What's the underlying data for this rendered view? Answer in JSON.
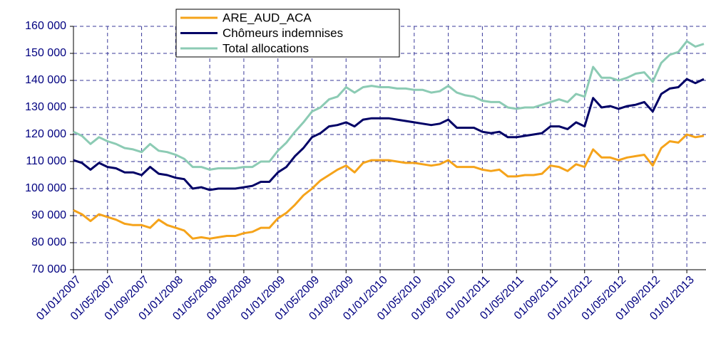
{
  "chart_data": {
    "type": "line",
    "categories": [
      "01/01/2007",
      null,
      null,
      null,
      "01/05/2007",
      null,
      null,
      null,
      "01/09/2007",
      null,
      null,
      null,
      "01/01/2008",
      null,
      null,
      null,
      "01/05/2008",
      null,
      null,
      null,
      "01/09/2008",
      null,
      null,
      null,
      "01/01/2009",
      null,
      null,
      null,
      "01/05/2009",
      null,
      null,
      null,
      "01/09/2009",
      null,
      null,
      null,
      "01/01/2010",
      null,
      null,
      null,
      "01/05/2010",
      null,
      null,
      null,
      "01/09/2010",
      null,
      null,
      null,
      "01/01/2011",
      null,
      null,
      null,
      "01/05/2011",
      null,
      null,
      null,
      "01/09/2011",
      null,
      null,
      null,
      "01/01/2012",
      null,
      null,
      null,
      "01/05/2012",
      null,
      null,
      null,
      "01/09/2012",
      null,
      null,
      null,
      "01/01/2013",
      null,
      null
    ],
    "series": [
      {
        "name": "ARE_AUD_ACA",
        "color": "#f5a31a",
        "values": [
          92000,
          90500,
          88000,
          90500,
          89500,
          88500,
          87000,
          86500,
          86500,
          85500,
          88500,
          86500,
          85500,
          84500,
          81500,
          82000,
          81500,
          82000,
          82500,
          82500,
          83500,
          84000,
          85500,
          85500,
          89000,
          91000,
          94000,
          97500,
          100000,
          103000,
          105000,
          107000,
          108500,
          106000,
          109500,
          110500,
          110500,
          110500,
          110000,
          109500,
          109500,
          109000,
          108500,
          109000,
          110500,
          108000,
          108000,
          108000,
          107000,
          106500,
          107000,
          104500,
          104500,
          105000,
          105000,
          105500,
          108500,
          108000,
          106500,
          109000,
          108000,
          114500,
          111500,
          111500,
          110500,
          111500,
          112000,
          112500,
          108500,
          115000,
          117500,
          117000,
          120000,
          119000,
          119500
        ]
      },
      {
        "name": "Chômeurs indemnises",
        "color": "#000066",
        "values": [
          110500,
          109500,
          107000,
          109500,
          108000,
          107500,
          106000,
          106000,
          105000,
          108000,
          105500,
          105000,
          104000,
          103500,
          100000,
          100500,
          99500,
          100000,
          100000,
          100000,
          100500,
          101000,
          102500,
          102500,
          106000,
          108000,
          112000,
          115000,
          119000,
          120500,
          123000,
          123500,
          124500,
          123000,
          125500,
          126000,
          126000,
          126000,
          125500,
          125000,
          124500,
          124000,
          123500,
          124000,
          125500,
          122500,
          122500,
          122500,
          121000,
          120500,
          121000,
          119000,
          119000,
          119500,
          120000,
          120500,
          123000,
          123000,
          122000,
          124500,
          123000,
          133500,
          130000,
          130500,
          129500,
          130500,
          131000,
          132000,
          128500,
          135000,
          137000,
          137500,
          140500,
          139000,
          140500
        ]
      },
      {
        "name": "Total allocations",
        "color": "#8ccbb4",
        "values": [
          121000,
          119500,
          116500,
          119000,
          117500,
          116500,
          115000,
          114500,
          113500,
          116500,
          114000,
          113500,
          112500,
          111000,
          108000,
          108000,
          107000,
          107500,
          107500,
          107500,
          108000,
          108000,
          110000,
          110000,
          114000,
          117000,
          121000,
          124500,
          128500,
          130000,
          133000,
          134000,
          137500,
          135500,
          137500,
          138000,
          137500,
          137500,
          137000,
          137000,
          136500,
          136500,
          135500,
          136000,
          138000,
          135500,
          134500,
          134000,
          132500,
          132000,
          132000,
          130000,
          129500,
          130000,
          130000,
          131000,
          132000,
          133000,
          132000,
          135000,
          134000,
          145000,
          141000,
          141000,
          140000,
          141000,
          142500,
          143000,
          139500,
          146500,
          149500,
          150500,
          154500,
          152500,
          153500
        ]
      }
    ],
    "ylim": [
      70000,
      160000
    ],
    "yticks": [
      {
        "value": 70000,
        "label": "70 000"
      },
      {
        "value": 80000,
        "label": "80 000"
      },
      {
        "value": 90000,
        "label": "90 000"
      },
      {
        "value": 100000,
        "label": "100 000"
      },
      {
        "value": 110000,
        "label": "110 000"
      },
      {
        "value": 120000,
        "label": "120 000"
      },
      {
        "value": 130000,
        "label": "130 000"
      },
      {
        "value": 140000,
        "label": "140 000"
      },
      {
        "value": 150000,
        "label": "150 000"
      },
      {
        "value": 160000,
        "label": "160 000"
      }
    ],
    "grid": true,
    "legend": "top"
  }
}
